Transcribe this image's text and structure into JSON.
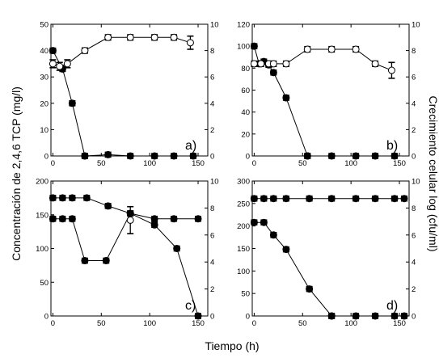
{
  "figure": {
    "ylabel_left": "Concentración de 2,4,6 TCP  (mg/l)",
    "ylabel_right": "Crecimiento celular log (cfu/ml)",
    "xlabel": "Tiempo (h)"
  },
  "chart_data": [
    {
      "type": "line",
      "panel_label": "a)",
      "x_ticks": [
        "0",
        "50",
        "100",
        "150"
      ],
      "xlim": [
        -2,
        160
      ],
      "y_left_ticks": [
        "0",
        "10",
        "20",
        "30",
        "40",
        "50"
      ],
      "ylim_left": [
        0,
        50
      ],
      "y_right_ticks": [
        "0",
        "2",
        "4",
        "6",
        "8",
        "10"
      ],
      "ylim_right": [
        0,
        10
      ],
      "series": [
        {
          "marker": "filled",
          "axis": "left",
          "x": [
            0,
            10,
            20,
            33
          ],
          "y": [
            40,
            33,
            20,
            0
          ]
        },
        {
          "marker": "filled",
          "axis": "right",
          "x": [
            33,
            57,
            80,
            105,
            125,
            145
          ],
          "y": [
            0,
            0.1,
            0,
            0,
            0,
            0
          ]
        },
        {
          "marker": "open",
          "axis": "right",
          "x": [
            0,
            7,
            15,
            33,
            57,
            80,
            105,
            125,
            142
          ],
          "y": [
            7,
            6.8,
            7,
            8,
            9,
            9,
            9,
            9,
            8.6
          ],
          "err": [
            0.3,
            0.3,
            0.3,
            0.2,
            0.2,
            0.2,
            0.2,
            0.2,
            0.5
          ]
        }
      ]
    },
    {
      "type": "line",
      "panel_label": "b)",
      "x_ticks": [
        "0",
        "50",
        "100",
        "150"
      ],
      "xlim": [
        -2,
        160
      ],
      "y_left_ticks": [
        "0",
        "20",
        "40",
        "60",
        "80",
        "100",
        "120"
      ],
      "ylim_left": [
        0,
        120
      ],
      "y_right_ticks": [
        "0",
        "2",
        "4",
        "6",
        "8",
        "10"
      ],
      "ylim_right": [
        0,
        10
      ],
      "series": [
        {
          "marker": "filled",
          "axis": "left",
          "x": [
            0,
            5,
            10,
            15,
            20,
            33,
            55
          ],
          "y": [
            100,
            84,
            86,
            83,
            76,
            53,
            0
          ]
        },
        {
          "marker": "filled",
          "axis": "right",
          "x": [
            55,
            80,
            105,
            125,
            145
          ],
          "y": [
            0,
            0,
            0,
            0,
            0
          ]
        },
        {
          "marker": "open",
          "axis": "right",
          "x": [
            0,
            7,
            15,
            20,
            33,
            55,
            80,
            105,
            125,
            142
          ],
          "y": [
            7,
            7,
            7,
            7,
            7,
            8.1,
            8.1,
            8.1,
            7,
            6.5
          ],
          "err": [
            0.2,
            0.2,
            0.2,
            0.2,
            0.2,
            0.2,
            0.2,
            0.2,
            0.2,
            0.6
          ]
        }
      ]
    },
    {
      "type": "line",
      "panel_label": "c)",
      "x_ticks": [
        "0",
        "50",
        "100",
        "150"
      ],
      "xlim": [
        -2,
        160
      ],
      "y_left_ticks": [
        "0",
        "50",
        "100",
        "150",
        "200"
      ],
      "ylim_left": [
        0,
        200
      ],
      "y_right_ticks": [
        "0",
        "2",
        "4",
        "6",
        "8",
        "10"
      ],
      "ylim_right": [
        0,
        10
      ],
      "series": [
        {
          "marker": "filled",
          "axis": "left",
          "x": [
            0,
            10,
            20,
            35,
            57,
            80,
            105,
            128,
            150
          ],
          "y": [
            175,
            175,
            175,
            175,
            163,
            152,
            135,
            100,
            0
          ]
        },
        {
          "marker": "filled",
          "axis": "right",
          "x": [
            0,
            10,
            20,
            33,
            55,
            80,
            105,
            125,
            150
          ],
          "y": [
            7.2,
            7.2,
            7.2,
            4.1,
            4.1,
            7.6,
            7.2,
            7.2,
            7.2
          ]
        },
        {
          "marker": "open",
          "axis": "right",
          "x": [
            80
          ],
          "y": [
            7.1
          ],
          "err": [
            1
          ]
        }
      ]
    },
    {
      "type": "line",
      "panel_label": "d)",
      "x_ticks": [
        "0",
        "50",
        "100",
        "150"
      ],
      "xlim": [
        -2,
        160
      ],
      "y_left_ticks": [
        "0",
        "50",
        "100",
        "150",
        "200",
        "250",
        "300"
      ],
      "ylim_left": [
        0,
        300
      ],
      "y_right_ticks": [
        "0",
        "2",
        "4",
        "6",
        "8",
        "10"
      ],
      "ylim_right": [
        0,
        10
      ],
      "series": [
        {
          "marker": "filled",
          "axis": "right",
          "x": [
            0,
            10,
            20,
            33,
            57,
            80,
            105,
            125,
            145,
            155
          ],
          "y": [
            8.7,
            8.7,
            8.7,
            8.7,
            8.7,
            8.7,
            8.7,
            8.7,
            8.7,
            8.7
          ]
        },
        {
          "marker": "filled",
          "axis": "left",
          "x": [
            0,
            10,
            20,
            33,
            57,
            80
          ],
          "y": [
            208,
            208,
            180,
            148,
            60,
            0
          ]
        },
        {
          "marker": "filled",
          "axis": "right",
          "x": [
            80,
            105,
            125,
            145,
            155
          ],
          "y": [
            0,
            0,
            0,
            0,
            0
          ]
        }
      ]
    }
  ]
}
